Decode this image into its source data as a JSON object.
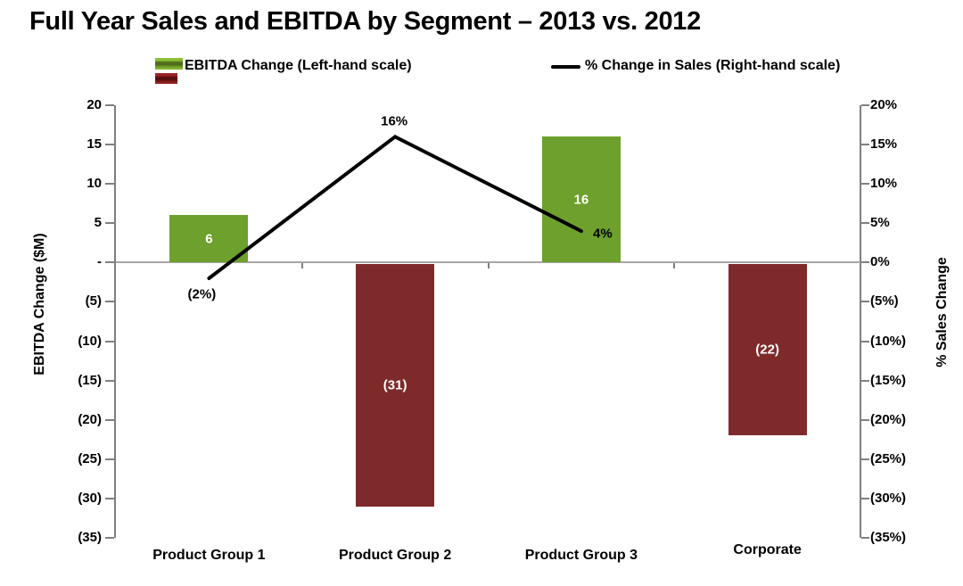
{
  "chart_data": {
    "type": "bar",
    "title": "Full Year Sales and EBITDA by Segment – 2013 vs. 2012",
    "categories": [
      "Product Group 1",
      "Product Group 2",
      "Product Group 3",
      "Corporate"
    ],
    "series": [
      {
        "name": "EBITDA Change (Left-hand scale)",
        "type": "bar",
        "axis": "left",
        "values": [
          6,
          -31,
          16,
          -22
        ],
        "value_labels": [
          "6",
          "(31)",
          "16",
          "(22)"
        ],
        "positive_color": "#6da02d",
        "negative_color": "#7f2a2a"
      },
      {
        "name": "% Change in Sales (Right-hand scale)",
        "type": "line",
        "axis": "right",
        "values": [
          -2,
          16,
          4,
          null
        ],
        "value_labels": [
          "(2%)",
          "16%",
          "4%"
        ],
        "color": "#000000"
      }
    ],
    "left_axis": {
      "label": "EBITDA Change ($M)",
      "ticks": [
        "20",
        "15",
        "10",
        "5",
        "-",
        "(5)",
        "(10)",
        "(15)",
        "(20)",
        "(25)",
        "(30)",
        "(35)"
      ],
      "range": [
        -35,
        20
      ],
      "step": 5
    },
    "right_axis": {
      "label": "% Sales Change",
      "ticks": [
        "20%",
        "15%",
        "10%",
        "5%",
        "0%",
        "(5%)",
        "(10%)",
        "(15%)",
        "(20%)",
        "(25%)",
        "(30%)",
        "(35%)"
      ],
      "range": [
        -35,
        20
      ],
      "step": 5
    },
    "grid": false,
    "legend_position": "top"
  },
  "colors": {
    "background": "#ffffff",
    "axis_line": "#808080",
    "zero_line": "#a6a6a6",
    "bar_positive": "#6da02d",
    "bar_negative": "#7f2a2a",
    "line_series": "#000000",
    "bar_label_text": "#ffffff"
  }
}
